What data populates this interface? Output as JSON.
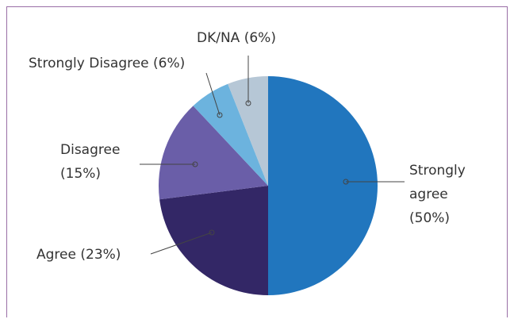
{
  "chart_data": {
    "type": "pie",
    "categories": [
      "Strongly agree",
      "Agree",
      "Disagree",
      "Strongly Disagree",
      "DK/NA"
    ],
    "values": [
      50,
      23,
      15,
      6,
      6
    ],
    "value_labels": [
      "(50%)",
      "(23%)",
      "(15%)",
      "(6%)",
      "(6%)"
    ],
    "colors": [
      "#2176be",
      "#332766",
      "#6a5ea8",
      "#6cb3de",
      "#b6c7d6"
    ]
  }
}
